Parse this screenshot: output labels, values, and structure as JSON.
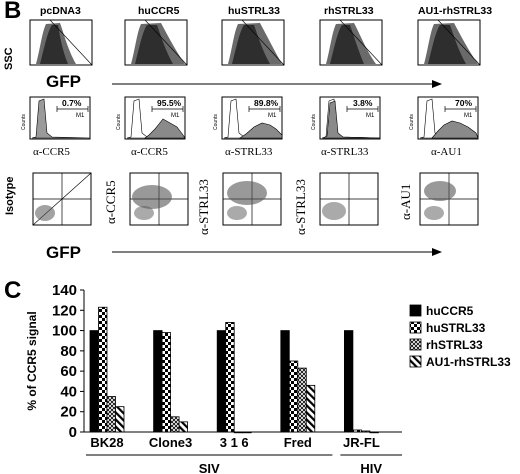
{
  "panel_b": {
    "letter": "B",
    "samples": [
      "pcDNA3",
      "huCCR5",
      "huSTRL33",
      "rhSTRL33",
      "AU1-rhSTRL33"
    ],
    "scatter_y_label": "SSC",
    "scatter_x_label": "GFP",
    "histograms": [
      {
        "percent": "0.7%",
        "gate": "M1",
        "ylabel": "Counts",
        "xlabel": "α-CCR5"
      },
      {
        "percent": "95.5%",
        "gate": "M1",
        "ylabel": "Counts",
        "xlabel": "α-CCR5"
      },
      {
        "percent": "89.8%",
        "gate": "M1",
        "ylabel": "Counts",
        "xlabel": "α-STRL33"
      },
      {
        "percent": "3.8%",
        "gate": "M1",
        "ylabel": "Counts",
        "xlabel": "α-STRL33"
      },
      {
        "percent": "70%",
        "gate": "M1",
        "ylabel": "Counts",
        "xlabel": "α-AU1"
      }
    ],
    "dotplot_y_labels": [
      "Isotype",
      "α-CCR5",
      "α-STRL33",
      "α-STRL33",
      "α-AU1"
    ],
    "dotplot_x_label": "GFP"
  },
  "panel_c": {
    "letter": "C"
  },
  "chart_data": {
    "type": "bar",
    "ylabel": "% of CCR5 signal",
    "ylim": [
      0,
      140
    ],
    "yticks": [
      0,
      20,
      40,
      60,
      80,
      100,
      120,
      140
    ],
    "categories": [
      "BK28",
      "Clone3",
      "3 1 6",
      "Fred",
      "JR-FL"
    ],
    "groups": [
      {
        "label": "SIV",
        "categories": [
          "BK28",
          "Clone3",
          "3 1 6",
          "Fred"
        ]
      },
      {
        "label": "HIV",
        "categories": [
          "JR-FL"
        ]
      }
    ],
    "legend_position": "right",
    "series": [
      {
        "name": "huCCR5",
        "values": [
          100,
          100,
          100,
          100,
          100
        ]
      },
      {
        "name": "huSTRL33",
        "values": [
          123,
          98,
          108,
          70,
          2
        ]
      },
      {
        "name": "rhSTRL33",
        "values": [
          35,
          15,
          0,
          63,
          1
        ]
      },
      {
        "name": "AU1-rhSTRL33",
        "values": [
          25,
          10,
          0,
          46,
          0
        ]
      }
    ]
  }
}
